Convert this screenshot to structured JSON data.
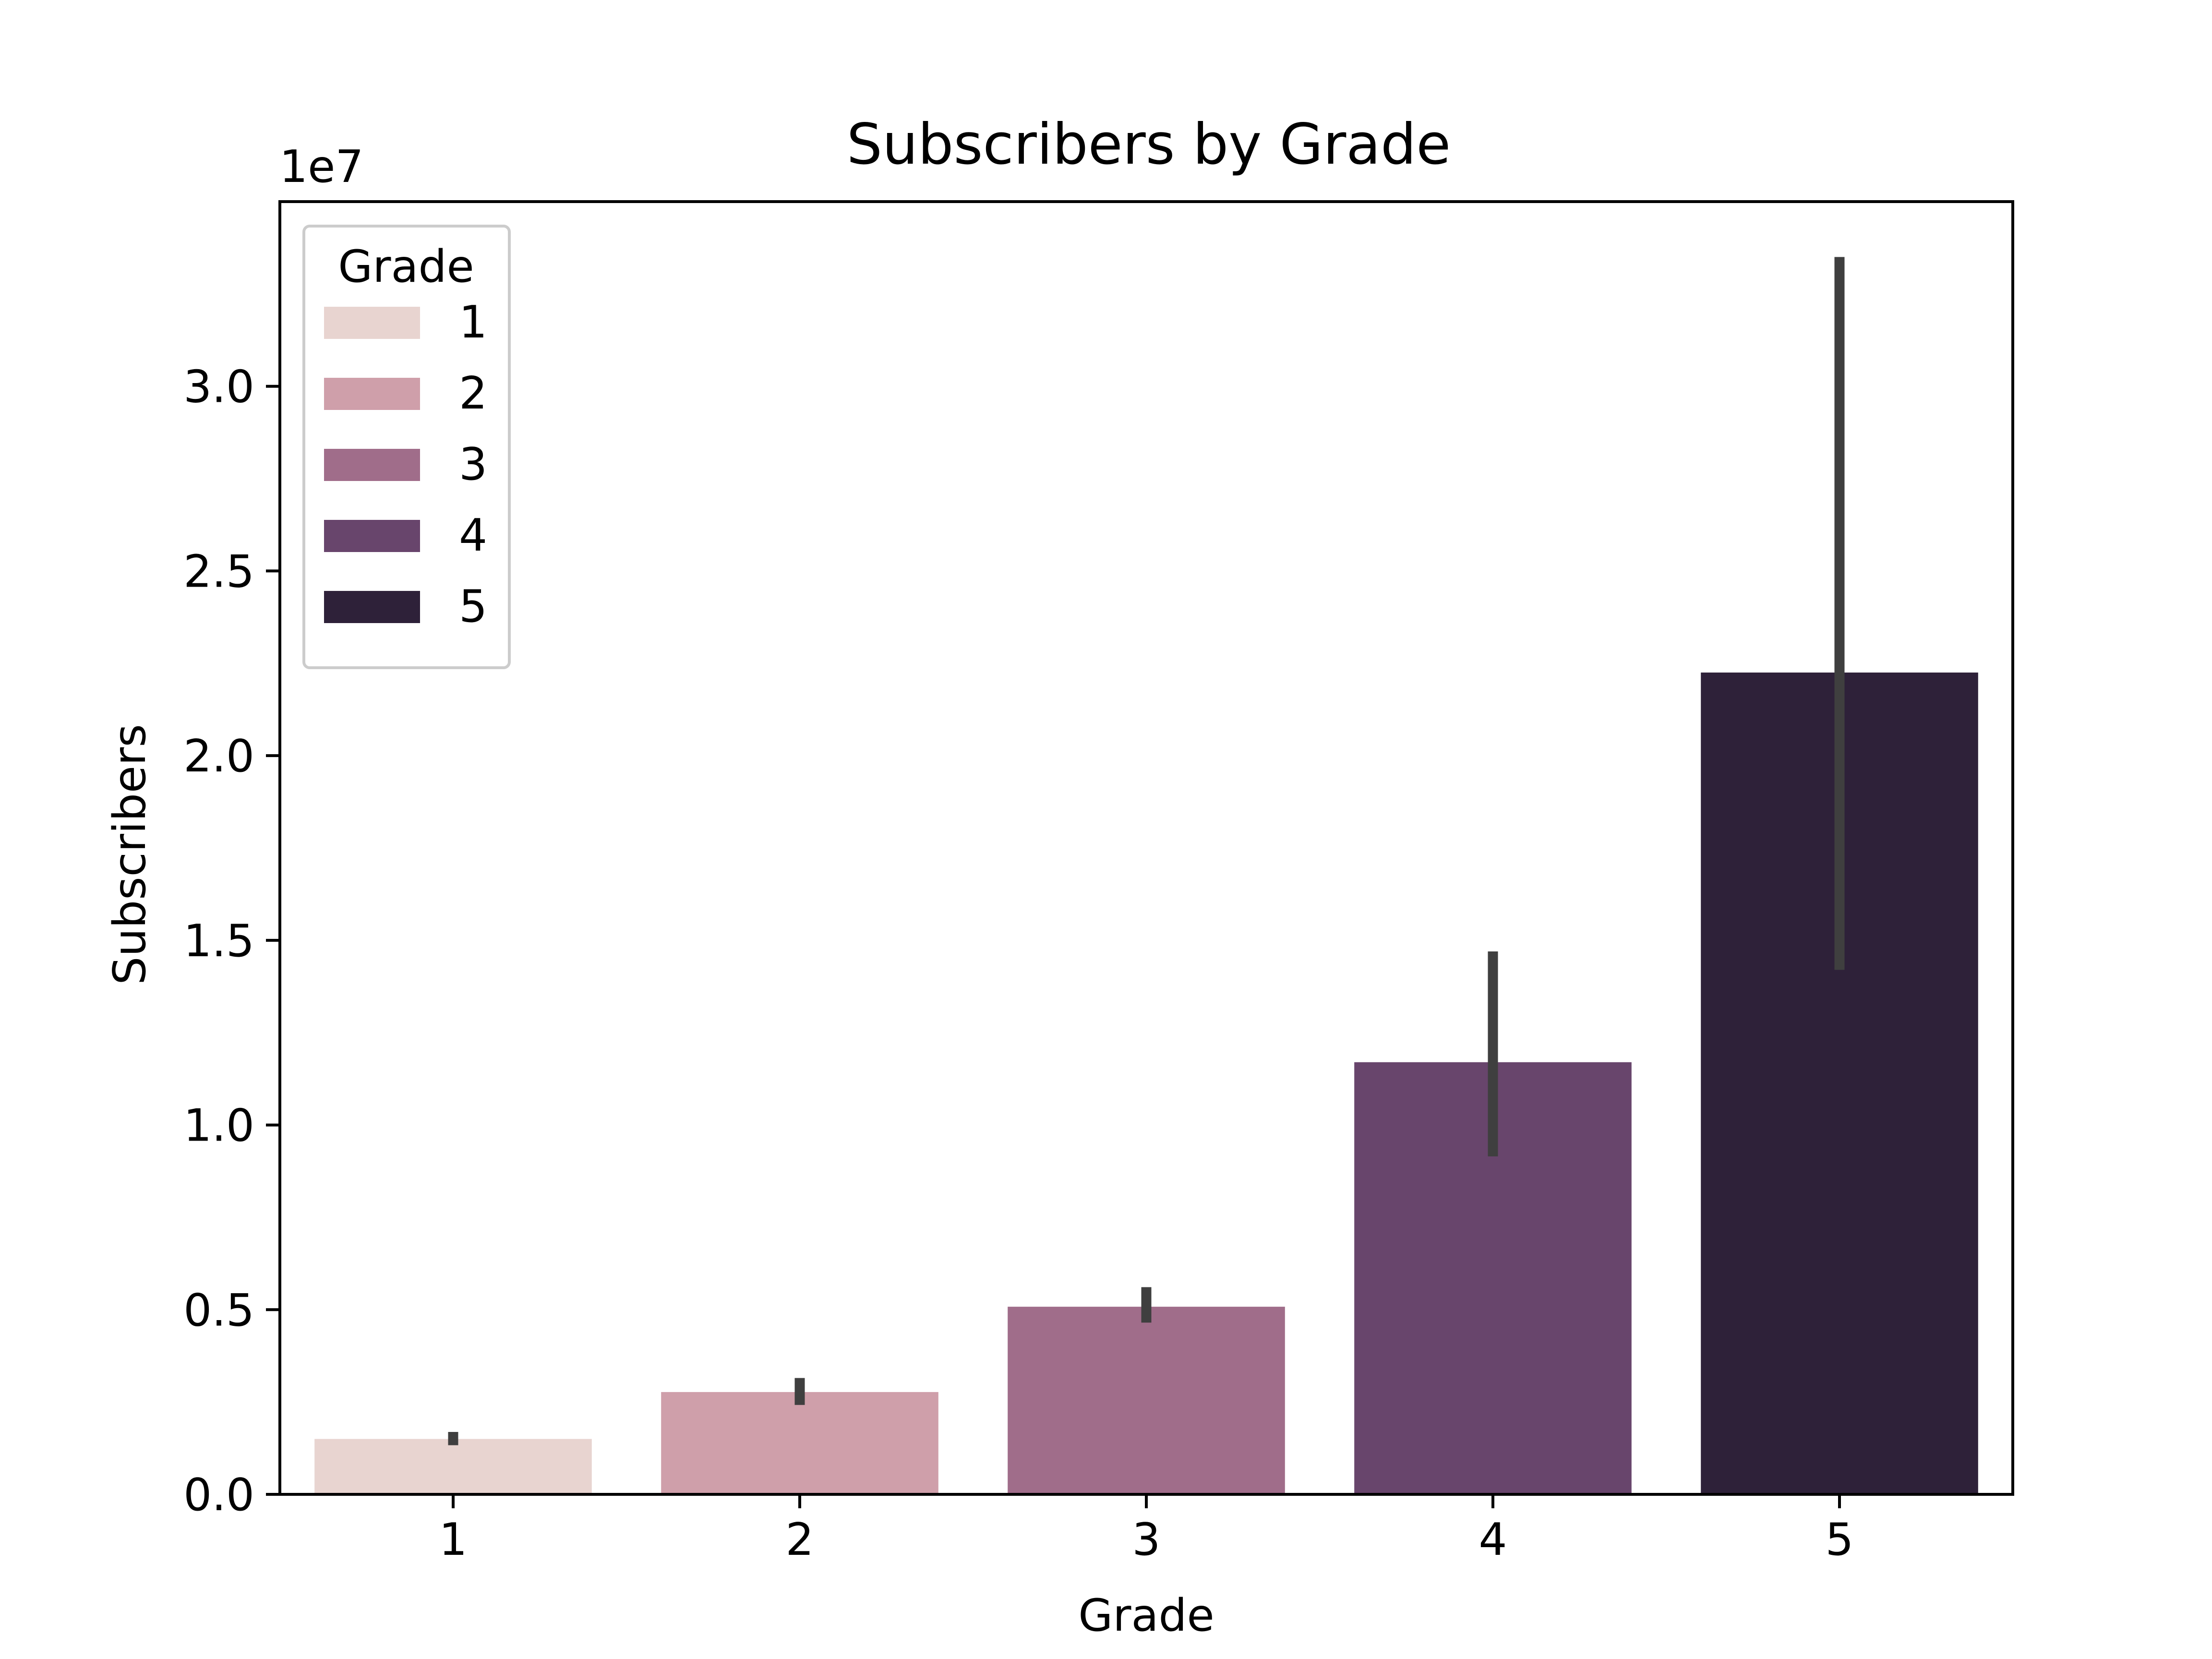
{
  "chart_data": {
    "type": "bar",
    "title": "Subscribers by Grade",
    "xlabel": "Grade",
    "ylabel": "Subscribers",
    "y_offset_label": "1e7",
    "y_scale": 10000000,
    "categories": [
      "1",
      "2",
      "3",
      "4",
      "5"
    ],
    "values": [
      1500000,
      2770000,
      5080000,
      11700000,
      22250000
    ],
    "error_bars": [
      {
        "low": 1330000,
        "high": 1690000
      },
      {
        "low": 2420000,
        "high": 3150000
      },
      {
        "low": 4650000,
        "high": 5610000
      },
      {
        "low": 9150000,
        "high": 14700000
      },
      {
        "low": 14200000,
        "high": 33500000
      }
    ],
    "ylim": [
      0,
      35000000
    ],
    "yticks": [
      0,
      5000000,
      10000000,
      15000000,
      20000000,
      25000000,
      30000000
    ],
    "ytick_labels": [
      "0.0",
      "0.5",
      "1.0",
      "1.5",
      "2.0",
      "2.5",
      "3.0"
    ],
    "grid": false,
    "colors": [
      "#e8d4d0",
      "#cf9faa",
      "#a06d8a",
      "#68456c",
      "#2e2139"
    ],
    "errorbar_color": "#3f3f3f",
    "legend": {
      "title": "Grade",
      "placement": "upper-left",
      "entries": [
        "1",
        "2",
        "3",
        "4",
        "5"
      ]
    }
  }
}
